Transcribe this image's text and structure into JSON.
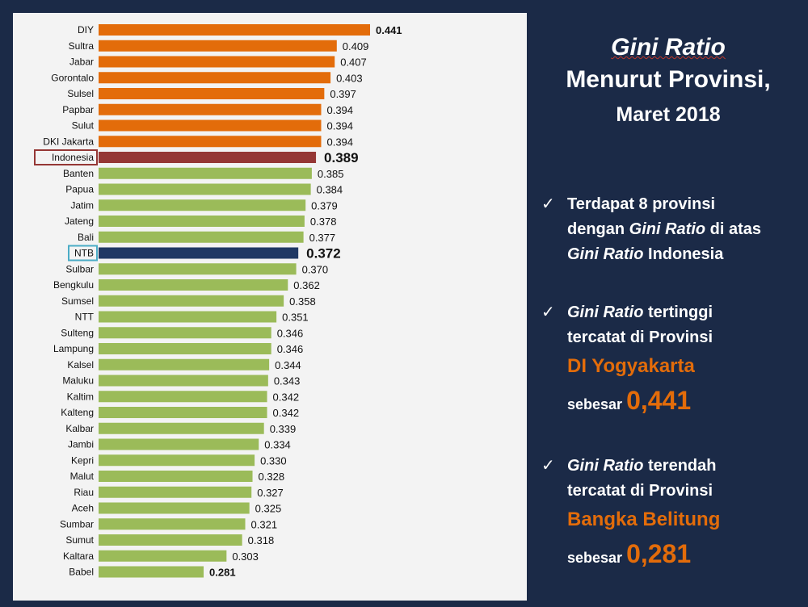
{
  "chart_data": {
    "type": "bar",
    "orientation": "horizontal",
    "categories": [
      "DIY",
      "Sultra",
      "Jabar",
      "Gorontalo",
      "Sulsel",
      "Papbar",
      "Sulut",
      "DKI Jakarta",
      "Indonesia",
      "Banten",
      "Papua",
      "Jatim",
      "Jateng",
      "Bali",
      "NTB",
      "Sulbar",
      "Bengkulu",
      "Sumsel",
      "NTT",
      "Sulteng",
      "Lampung",
      "Kalsel",
      "Maluku",
      "Kaltim",
      "Kalteng",
      "Kalbar",
      "Jambi",
      "Kepri",
      "Malut",
      "Riau",
      "Aceh",
      "Sumbar",
      "Sumut",
      "Kaltara",
      "Babel"
    ],
    "values": [
      0.441,
      0.409,
      0.407,
      0.403,
      0.397,
      0.394,
      0.394,
      0.394,
      0.389,
      0.385,
      0.384,
      0.379,
      0.378,
      0.377,
      0.372,
      0.37,
      0.362,
      0.358,
      0.351,
      0.346,
      0.346,
      0.344,
      0.343,
      0.342,
      0.342,
      0.339,
      0.334,
      0.33,
      0.328,
      0.327,
      0.325,
      0.321,
      0.318,
      0.303,
      0.281
    ],
    "value_labels": [
      "0.441",
      "0.409",
      "0.407",
      "0.403",
      "0.397",
      "0.394",
      "0.394",
      "0.394",
      "0.389",
      "0.385",
      "0.384",
      "0.379",
      "0.378",
      "0.377",
      "0.372",
      "0.370",
      "0.362",
      "0.358",
      "0.351",
      "0.346",
      "0.346",
      "0.344",
      "0.343",
      "0.342",
      "0.342",
      "0.339",
      "0.334",
      "0.330",
      "0.328",
      "0.327",
      "0.325",
      "0.321",
      "0.318",
      "0.303",
      "0.281"
    ],
    "bar_colors": [
      "#e36c0a",
      "#e36c0a",
      "#e36c0a",
      "#e36c0a",
      "#e36c0a",
      "#e36c0a",
      "#e36c0a",
      "#e36c0a",
      "#953735",
      "#9bbb59",
      "#9bbb59",
      "#9bbb59",
      "#9bbb59",
      "#9bbb59",
      "#1f3864",
      "#9bbb59",
      "#9bbb59",
      "#9bbb59",
      "#9bbb59",
      "#9bbb59",
      "#9bbb59",
      "#9bbb59",
      "#9bbb59",
      "#9bbb59",
      "#9bbb59",
      "#9bbb59",
      "#9bbb59",
      "#9bbb59",
      "#9bbb59",
      "#9bbb59",
      "#9bbb59",
      "#9bbb59",
      "#9bbb59",
      "#9bbb59",
      "#9bbb59"
    ],
    "highlighted_labels": {
      "Indonesia": "#953735",
      "NTB": "#4bacc6"
    },
    "emphasized_values": [
      "DIY",
      "Indonesia",
      "NTB",
      "Babel"
    ],
    "xlim": [
      0.18,
      0.441
    ],
    "grid": false,
    "legend": "none"
  },
  "colors": {
    "background": "#1b2a47",
    "panel": "#f3f3f3",
    "above_national": "#e36c0a",
    "national": "#953735",
    "ntb": "#1f3864",
    "below_national": "#9bbb59",
    "accent_text": "#e36c0a"
  },
  "header": {
    "title_line1": "Gini Ratio",
    "title_line2": "Menurut Provinsi,",
    "title_line3": "Maret 2018"
  },
  "bullets": {
    "check_icon": "✓",
    "b1_line1": "Terdapat 8 provinsi",
    "b1_line2_a": "dengan ",
    "b1_line2_em": "Gini Ratio",
    "b1_line2_b": " di atas",
    "b1_line3_em": "Gini Ratio",
    "b1_line3_b": " Indonesia",
    "b2_line1_em": "Gini Ratio",
    "b2_line1_b": " tertinggi",
    "b2_line2": "tercatat di Provinsi",
    "b2_province": "DI Yogyakarta",
    "b2_lead": "sebesar ",
    "b2_value": "0,441",
    "b3_line1_em": "Gini Ratio",
    "b3_line1_b": " terendah",
    "b3_line2": "tercatat di Provinsi",
    "b3_province": "Bangka Belitung",
    "b3_lead": "sebesar ",
    "b3_value": "0,281"
  }
}
